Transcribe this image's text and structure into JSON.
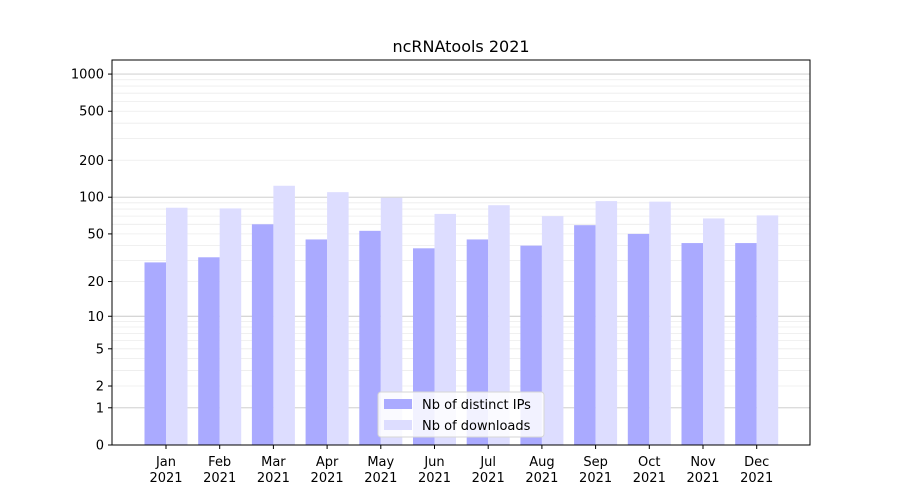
{
  "chart_data": {
    "type": "bar",
    "title": "ncRNAtools 2021",
    "xlabel": "",
    "ylabel": "",
    "y_scale": "symlog",
    "ylim": [
      0,
      1300
    ],
    "grid": true,
    "legend_position": "lower center",
    "categories": [
      "Jan\n2021",
      "Feb\n2021",
      "Mar\n2021",
      "Apr\n2021",
      "May\n2021",
      "Jun\n2021",
      "Jul\n2021",
      "Aug\n2021",
      "Sep\n2021",
      "Oct\n2021",
      "Nov\n2021",
      "Dec\n2021"
    ],
    "y_ticks": [
      0,
      1,
      2,
      5,
      10,
      20,
      50,
      100,
      200,
      500,
      1000
    ],
    "series": [
      {
        "name": "Nb of distinct IPs",
        "color": "#aaaaff",
        "values": [
          29,
          32,
          60,
          45,
          53,
          38,
          45,
          40,
          59,
          50,
          42,
          42
        ]
      },
      {
        "name": "Nb of downloads",
        "color": "#ddddff",
        "values": [
          82,
          81,
          124,
          110,
          99,
          73,
          86,
          70,
          93,
          92,
          67,
          71
        ]
      }
    ]
  }
}
